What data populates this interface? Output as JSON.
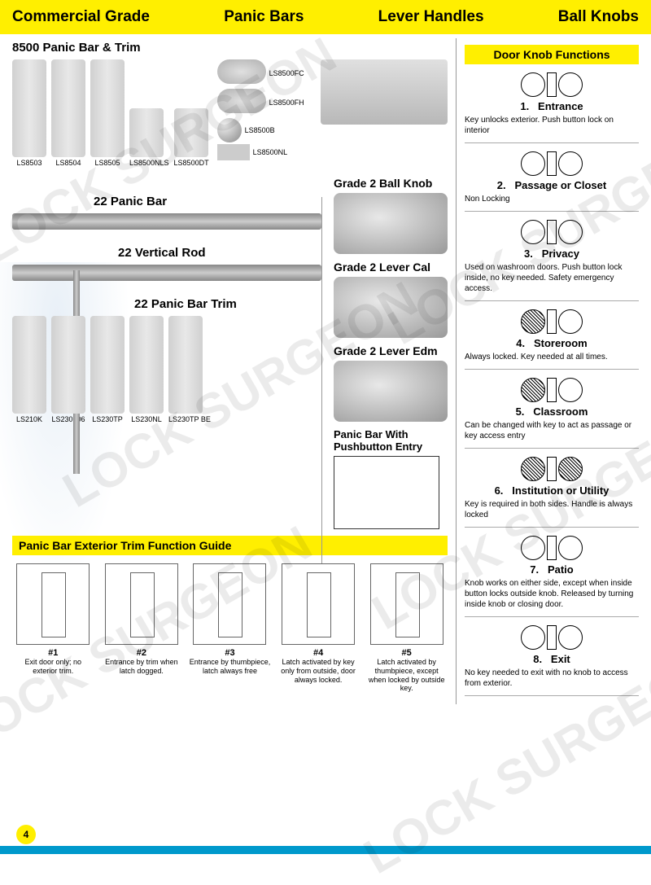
{
  "header": {
    "items": [
      "Commercial Grade",
      "Panic Bars",
      "Lever Handles",
      "Ball Knobs"
    ]
  },
  "watermark_text": "LOCK SURGEON",
  "sections": {
    "panic_8500": {
      "title": "8500 Panic Bar & Trim",
      "trims": [
        "LS8503",
        "LS8504",
        "LS8505",
        "LS8500NLS",
        "LS8500DT"
      ],
      "levers": [
        "LS8500FC",
        "LS8500FH",
        "LS8500B",
        "LS8500NL"
      ]
    },
    "panic_22": {
      "bar_title": "22 Panic Bar",
      "rod_title": "22 Vertical Rod",
      "trim_title": "22 Panic Bar Trim",
      "trims": [
        "LS210K",
        "LS230L06",
        "LS230TP",
        "LS230NL",
        "LS230TP BE"
      ]
    },
    "grade2": {
      "ball": "Grade 2 Ball Knob",
      "lever_cal": "Grade 2 Lever Cal",
      "lever_edm": "Grade 2 Lever Edm",
      "pushbutton": "Panic Bar With Pushbutton Entry"
    },
    "trim_guide": {
      "title": "Panic Bar Exterior Trim Function Guide",
      "items": [
        {
          "num": "#1",
          "desc": "Exit door only; no exterior trim."
        },
        {
          "num": "#2",
          "desc": "Entrance by trim when latch dogged."
        },
        {
          "num": "#3",
          "desc": "Entrance by thumbpiece, latch always free"
        },
        {
          "num": "#4",
          "desc": "Latch activated by key only from outside, door always locked."
        },
        {
          "num": "#5",
          "desc": "Latch activated by thumbpiece, except when locked by outside key."
        }
      ]
    }
  },
  "knob_functions": {
    "title": "Door Knob Functions",
    "items": [
      {
        "num": "1.",
        "name": "Entrance",
        "desc": "Key unlocks exterior. Push button lock on interior",
        "hatched": [
          false,
          false
        ]
      },
      {
        "num": "2.",
        "name": "Passage or Closet",
        "desc": "Non Locking",
        "hatched": [
          false,
          false
        ]
      },
      {
        "num": "3.",
        "name": "Privacy",
        "desc": "Used on washroom doors. Push button lock inside, no key needed. Safety emergency access.",
        "hatched": [
          false,
          false
        ]
      },
      {
        "num": "4.",
        "name": "Storeroom",
        "desc": "Always locked. Key needed at all times.",
        "hatched": [
          true,
          false
        ]
      },
      {
        "num": "5.",
        "name": "Classroom",
        "desc": "Can be changed with key to act as passage or key access entry",
        "hatched": [
          true,
          false
        ]
      },
      {
        "num": "6.",
        "name": "Institution or Utility",
        "desc": "Key is required in both sides. Handle is always locked",
        "hatched": [
          true,
          true
        ]
      },
      {
        "num": "7.",
        "name": "Patio",
        "desc": "Knob works on either side, except when inside button locks outside knob. Released by turning inside knob or closing door.",
        "hatched": [
          false,
          false
        ]
      },
      {
        "num": "8.",
        "name": "Exit",
        "desc": "No key needed to exit with no knob to access from exterior.",
        "hatched": [
          false,
          false
        ]
      }
    ]
  },
  "page_number": "4",
  "colors": {
    "yellow": "#ffef00",
    "blue_footer": "#0099cc",
    "metal_light": "#e0e0e0",
    "metal_dark": "#999999"
  }
}
